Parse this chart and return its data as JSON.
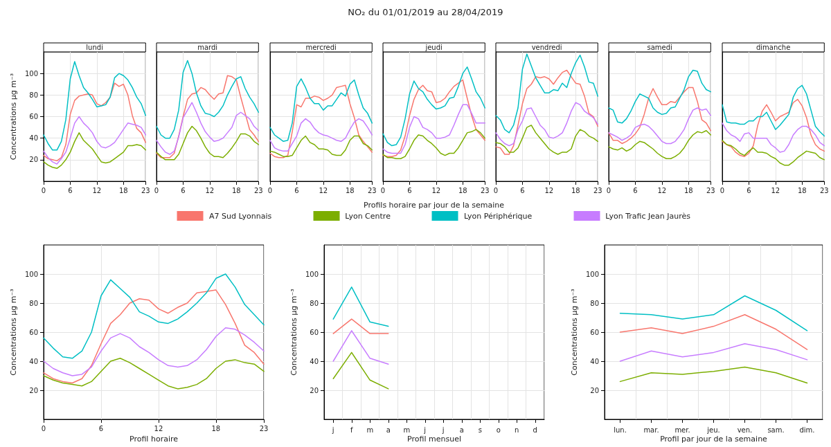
{
  "chart_data": [
    {
      "type": "line",
      "subtitle": "lundi",
      "ylabel": "Concentrations µg m⁻³",
      "x": [
        0,
        1,
        2,
        3,
        4,
        5,
        6,
        7,
        8,
        9,
        10,
        11,
        12,
        13,
        14,
        15,
        16,
        17,
        18,
        19,
        20,
        21,
        22,
        23
      ],
      "xlim": [
        0,
        23
      ],
      "xticks": [
        0,
        6,
        12,
        18,
        23
      ],
      "ylim": [
        0,
        120
      ],
      "yticks": [
        20,
        40,
        60,
        80,
        100
      ],
      "grid": true,
      "series": [
        {
          "color": "#f8766d",
          "values": [
            24,
            21,
            20,
            19,
            22,
            34,
            62,
            75,
            79,
            80,
            81,
            80,
            72,
            70,
            73,
            78,
            91,
            88,
            90,
            80,
            61,
            49,
            45,
            36
          ]
        },
        {
          "color": "#7cae00",
          "values": [
            18,
            15,
            13,
            12,
            15,
            20,
            27,
            37,
            45,
            38,
            34,
            30,
            24,
            18,
            17,
            18,
            21,
            24,
            27,
            33,
            33,
            34,
            33,
            29
          ]
        },
        {
          "color": "#00bfc4",
          "values": [
            43,
            35,
            29,
            29,
            37,
            57,
            95,
            111,
            98,
            87,
            82,
            76,
            69,
            70,
            71,
            78,
            96,
            100,
            98,
            94,
            87,
            78,
            72,
            61
          ]
        },
        {
          "color": "#c77cff",
          "values": [
            28,
            22,
            18,
            16,
            21,
            27,
            40,
            54,
            60,
            54,
            50,
            45,
            37,
            32,
            31,
            33,
            36,
            42,
            48,
            54,
            53,
            52,
            50,
            43
          ]
        }
      ]
    },
    {
      "type": "line",
      "subtitle": "mardi",
      "x": [
        0,
        1,
        2,
        3,
        4,
        5,
        6,
        7,
        8,
        9,
        10,
        11,
        12,
        13,
        14,
        15,
        16,
        17,
        18,
        19,
        20,
        21,
        22,
        23
      ],
      "xlim": [
        0,
        23
      ],
      "xticks": [
        0,
        6,
        12,
        18,
        23
      ],
      "ylim": [
        0,
        120
      ],
      "yticks": [
        20,
        40,
        60,
        80,
        100
      ],
      "grid": true,
      "tick_labels": "x",
      "series": [
        {
          "color": "#f8766d",
          "values": [
            26,
            22,
            22,
            22,
            26,
            42,
            60,
            76,
            81,
            82,
            87,
            85,
            80,
            76,
            81,
            82,
            98,
            97,
            94,
            78,
            63,
            48,
            43,
            37
          ]
        },
        {
          "color": "#7cae00",
          "values": [
            27,
            23,
            20,
            20,
            20,
            25,
            35,
            45,
            51,
            47,
            40,
            32,
            26,
            23,
            23,
            22,
            26,
            31,
            37,
            44,
            44,
            42,
            37,
            34
          ]
        },
        {
          "color": "#00bfc4",
          "values": [
            51,
            43,
            40,
            40,
            48,
            66,
            101,
            112,
            100,
            82,
            70,
            63,
            62,
            60,
            64,
            70,
            80,
            88,
            95,
            97,
            86,
            78,
            72,
            64
          ]
        },
        {
          "color": "#c77cff",
          "values": [
            38,
            32,
            27,
            25,
            28,
            41,
            59,
            66,
            73,
            64,
            54,
            46,
            41,
            37,
            38,
            40,
            45,
            50,
            61,
            64,
            61,
            58,
            51,
            47
          ]
        }
      ]
    },
    {
      "type": "line",
      "subtitle": "mercredi",
      "x": [
        0,
        1,
        2,
        3,
        4,
        5,
        6,
        7,
        8,
        9,
        10,
        11,
        12,
        13,
        14,
        15,
        16,
        17,
        18,
        19,
        20,
        21,
        22,
        23
      ],
      "xlim": [
        0,
        23
      ],
      "xticks": [
        0,
        6,
        12,
        18,
        23
      ],
      "ylim": [
        0,
        120
      ],
      "yticks": [
        20,
        40,
        60,
        80,
        100
      ],
      "grid": true,
      "tick_labels": "x",
      "series": [
        {
          "color": "#f8766d",
          "values": [
            26,
            23,
            22,
            22,
            24,
            46,
            71,
            69,
            77,
            77,
            79,
            78,
            75,
            77,
            80,
            87,
            88,
            89,
            72,
            59,
            43,
            37,
            32,
            27
          ]
        },
        {
          "color": "#7cae00",
          "values": [
            28,
            27,
            25,
            23,
            23,
            24,
            31,
            38,
            42,
            36,
            34,
            30,
            30,
            29,
            25,
            24,
            24,
            29,
            38,
            42,
            42,
            35,
            33,
            29
          ]
        },
        {
          "color": "#00bfc4",
          "values": [
            50,
            43,
            40,
            37,
            38,
            54,
            88,
            95,
            87,
            77,
            72,
            72,
            66,
            70,
            70,
            76,
            82,
            79,
            90,
            94,
            80,
            68,
            63,
            54
          ]
        },
        {
          "color": "#c77cff",
          "values": [
            38,
            31,
            29,
            28,
            28,
            35,
            42,
            54,
            58,
            55,
            49,
            45,
            43,
            42,
            40,
            38,
            37,
            40,
            48,
            55,
            58,
            56,
            50,
            43
          ]
        }
      ]
    },
    {
      "type": "line",
      "title": "NO₂ du 01/01/2019 au 28/04/2019",
      "subtitle": "jeudi",
      "xlabel": "Profils horaire par jour de la semaine",
      "legend": "bottom",
      "x": [
        0,
        1,
        2,
        3,
        4,
        5,
        6,
        7,
        8,
        9,
        10,
        11,
        12,
        13,
        14,
        15,
        16,
        17,
        18,
        19,
        20,
        21,
        22,
        23
      ],
      "xlim": [
        0,
        23
      ],
      "xticks": [
        0,
        6,
        12,
        18,
        23
      ],
      "ylim": [
        0,
        120
      ],
      "yticks": [
        20,
        40,
        60,
        80,
        100
      ],
      "grid": true,
      "tick_labels": "x",
      "series": [
        {
          "name": "A7 Sud Lyonnais",
          "color": "#f8766d",
          "values": [
            24,
            23,
            23,
            24,
            29,
            42,
            61,
            76,
            85,
            89,
            84,
            83,
            73,
            74,
            77,
            83,
            88,
            91,
            94,
            77,
            61,
            48,
            43,
            38
          ]
        },
        {
          "name": "Lyon Centre",
          "color": "#7cae00",
          "values": [
            25,
            22,
            22,
            21,
            21,
            23,
            30,
            38,
            43,
            42,
            38,
            35,
            31,
            26,
            24,
            26,
            26,
            31,
            38,
            45,
            46,
            48,
            45,
            40
          ]
        },
        {
          "name": "Lyon Périphérique",
          "color": "#00bfc4",
          "values": [
            44,
            36,
            33,
            34,
            41,
            58,
            81,
            93,
            86,
            83,
            76,
            71,
            67,
            68,
            70,
            77,
            78,
            88,
            100,
            106,
            95,
            83,
            77,
            68
          ]
        },
        {
          "name": "Lyon Trafic Jean Jaurès",
          "color": "#c77cff",
          "values": [
            30,
            27,
            26,
            26,
            26,
            34,
            50,
            60,
            58,
            50,
            48,
            45,
            40,
            40,
            41,
            43,
            52,
            62,
            71,
            71,
            63,
            54,
            54,
            54
          ]
        }
      ]
    },
    {
      "type": "line",
      "subtitle": "vendredi",
      "x": [
        0,
        1,
        2,
        3,
        4,
        5,
        6,
        7,
        8,
        9,
        10,
        11,
        12,
        13,
        14,
        15,
        16,
        17,
        18,
        19,
        20,
        21,
        22,
        23
      ],
      "xlim": [
        0,
        23
      ],
      "xticks": [
        0,
        6,
        12,
        18,
        23
      ],
      "ylim": [
        0,
        120
      ],
      "yticks": [
        20,
        40,
        60,
        80,
        100
      ],
      "grid": true,
      "tick_labels": "x",
      "series": [
        {
          "color": "#f8766d",
          "values": [
            32,
            31,
            25,
            25,
            33,
            52,
            72,
            86,
            90,
            97,
            96,
            97,
            95,
            90,
            96,
            101,
            103,
            97,
            91,
            90,
            79,
            63,
            60,
            51
          ]
        },
        {
          "color": "#7cae00",
          "values": [
            36,
            35,
            32,
            27,
            27,
            31,
            40,
            50,
            52,
            45,
            40,
            35,
            30,
            27,
            25,
            27,
            27,
            30,
            42,
            48,
            46,
            42,
            40,
            37
          ]
        },
        {
          "color": "#00bfc4",
          "values": [
            61,
            57,
            48,
            45,
            52,
            68,
            104,
            118,
            107,
            96,
            89,
            82,
            82,
            85,
            84,
            91,
            87,
            100,
            110,
            117,
            106,
            92,
            91,
            79
          ]
        },
        {
          "color": "#c77cff",
          "values": [
            45,
            39,
            35,
            33,
            35,
            48,
            56,
            67,
            68,
            60,
            52,
            48,
            41,
            40,
            42,
            45,
            54,
            65,
            73,
            71,
            65,
            62,
            59,
            53
          ]
        }
      ]
    },
    {
      "type": "line",
      "subtitle": "samedi",
      "x": [
        0,
        1,
        2,
        3,
        4,
        5,
        6,
        7,
        8,
        9,
        10,
        11,
        12,
        13,
        14,
        15,
        16,
        17,
        18,
        19,
        20,
        21,
        22,
        23
      ],
      "xlim": [
        0,
        23
      ],
      "xticks": [
        0,
        6,
        12,
        18,
        23
      ],
      "ylim": [
        0,
        120
      ],
      "yticks": [
        20,
        40,
        60,
        80,
        100
      ],
      "grid": true,
      "tick_labels": "x",
      "series": [
        {
          "color": "#f8766d",
          "values": [
            45,
            38,
            38,
            35,
            37,
            40,
            44,
            50,
            62,
            77,
            86,
            78,
            71,
            71,
            74,
            73,
            78,
            83,
            87,
            87,
            74,
            57,
            54,
            47
          ]
        },
        {
          "color": "#7cae00",
          "values": [
            32,
            30,
            29,
            31,
            28,
            30,
            34,
            37,
            36,
            33,
            30,
            26,
            23,
            21,
            21,
            23,
            26,
            31,
            38,
            43,
            46,
            45,
            47,
            43
          ]
        },
        {
          "color": "#00bfc4",
          "values": [
            68,
            66,
            55,
            54,
            58,
            65,
            74,
            81,
            79,
            77,
            68,
            64,
            62,
            63,
            68,
            69,
            77,
            85,
            97,
            103,
            102,
            91,
            85,
            83
          ]
        },
        {
          "color": "#c77cff",
          "values": [
            45,
            43,
            41,
            38,
            40,
            43,
            50,
            52,
            53,
            51,
            47,
            42,
            37,
            35,
            35,
            37,
            42,
            48,
            58,
            66,
            68,
            66,
            67,
            61
          ]
        }
      ]
    },
    {
      "type": "line",
      "subtitle": "dimanche",
      "x": [
        0,
        1,
        2,
        3,
        4,
        5,
        6,
        7,
        8,
        9,
        10,
        11,
        12,
        13,
        14,
        15,
        16,
        17,
        18,
        19,
        20,
        21,
        22,
        23
      ],
      "xlim": [
        0,
        23
      ],
      "xticks": [
        0,
        6,
        12,
        18,
        23
      ],
      "ylim": [
        0,
        120
      ],
      "yticks": [
        20,
        40,
        60,
        80,
        100
      ],
      "grid": true,
      "tick_labels": "x",
      "series": [
        {
          "color": "#f8766d",
          "values": [
            37,
            34,
            32,
            27,
            24,
            23,
            26,
            33,
            52,
            65,
            71,
            64,
            56,
            60,
            62,
            64,
            73,
            76,
            70,
            59,
            43,
            34,
            30,
            28
          ]
        },
        {
          "color": "#7cae00",
          "values": [
            38,
            34,
            33,
            30,
            26,
            24,
            28,
            31,
            27,
            27,
            26,
            23,
            21,
            17,
            15,
            15,
            18,
            22,
            25,
            28,
            27,
            26,
            22,
            20
          ]
        },
        {
          "color": "#00bfc4",
          "values": [
            71,
            55,
            54,
            54,
            53,
            53,
            56,
            56,
            60,
            60,
            64,
            56,
            48,
            52,
            57,
            62,
            78,
            86,
            89,
            81,
            66,
            51,
            46,
            42
          ]
        },
        {
          "color": "#c77cff",
          "values": [
            54,
            47,
            43,
            41,
            37,
            44,
            45,
            40,
            40,
            40,
            40,
            34,
            31,
            27,
            28,
            34,
            43,
            48,
            51,
            51,
            48,
            43,
            36,
            33
          ]
        }
      ]
    },
    {
      "type": "line",
      "xlabel": "Profil horaire",
      "ylabel": "Concentrations µg m⁻³",
      "x": [
        0,
        1,
        2,
        3,
        4,
        5,
        6,
        7,
        8,
        9,
        10,
        11,
        12,
        13,
        14,
        15,
        16,
        17,
        18,
        19,
        20,
        21,
        22,
        23
      ],
      "xlim": [
        0,
        23
      ],
      "xticks": [
        0,
        6,
        12,
        18,
        23
      ],
      "ylim": [
        0,
        120
      ],
      "yticks": [
        20,
        40,
        60,
        80,
        100
      ],
      "grid": true,
      "series": [
        {
          "color": "#f8766d",
          "values": [
            32,
            28,
            26,
            25,
            28,
            37,
            52,
            66,
            72,
            80,
            83,
            82,
            76,
            73,
            77,
            80,
            87,
            88,
            89,
            79,
            66,
            51,
            46,
            38
          ]
        },
        {
          "color": "#7cae00",
          "values": [
            30,
            27,
            25,
            24,
            23,
            26,
            33,
            40,
            42,
            39,
            35,
            31,
            27,
            23,
            21,
            22,
            24,
            28,
            35,
            40,
            41,
            39,
            38,
            33
          ]
        },
        {
          "color": "#00bfc4",
          "values": [
            56,
            49,
            43,
            42,
            47,
            60,
            85,
            96,
            90,
            84,
            74,
            71,
            67,
            66,
            69,
            74,
            80,
            87,
            97,
            100,
            91,
            79,
            72,
            65
          ]
        },
        {
          "color": "#c77cff",
          "values": [
            40,
            35,
            32,
            30,
            31,
            36,
            47,
            56,
            59,
            56,
            50,
            46,
            41,
            37,
            36,
            37,
            41,
            48,
            57,
            63,
            62,
            58,
            53,
            47
          ]
        }
      ]
    },
    {
      "type": "line",
      "xlabel": "Profil mensuel",
      "ylabel": "Concentrations µg m⁻³",
      "categories": [
        "j",
        "f",
        "m",
        "a",
        "m",
        "j",
        "j",
        "a",
        "s",
        "o",
        "n",
        "d"
      ],
      "ylim": [
        0,
        120
      ],
      "yticks": [
        20,
        40,
        60,
        80,
        100
      ],
      "grid": true,
      "series": [
        {
          "color": "#f8766d",
          "values": [
            59,
            69,
            59,
            59,
            null,
            null,
            null,
            null,
            null,
            null,
            null,
            null
          ]
        },
        {
          "color": "#7cae00",
          "values": [
            28,
            46,
            27,
            21,
            null,
            null,
            null,
            null,
            null,
            null,
            null,
            null
          ]
        },
        {
          "color": "#00bfc4",
          "values": [
            69,
            91,
            67,
            64,
            null,
            null,
            null,
            null,
            null,
            null,
            null,
            null
          ]
        },
        {
          "color": "#c77cff",
          "values": [
            40,
            61,
            42,
            38,
            null,
            null,
            null,
            null,
            null,
            null,
            null,
            null
          ]
        }
      ]
    },
    {
      "type": "line",
      "xlabel": "Profil par jour de la semaine",
      "ylabel": "Concentrations µg m⁻³",
      "categories": [
        "lun.",
        "mar.",
        "mer.",
        "jeu.",
        "ven.",
        "sam.",
        "dim."
      ],
      "ylim": [
        0,
        120
      ],
      "yticks": [
        20,
        40,
        60,
        80,
        100
      ],
      "grid": true,
      "series": [
        {
          "color": "#f8766d",
          "values": [
            60,
            63,
            59,
            64,
            72,
            62,
            48
          ]
        },
        {
          "color": "#7cae00",
          "values": [
            26,
            32,
            31,
            33,
            36,
            32,
            25
          ]
        },
        {
          "color": "#00bfc4",
          "values": [
            73,
            72,
            69,
            72,
            85,
            75,
            61
          ]
        },
        {
          "color": "#c77cff",
          "values": [
            40,
            47,
            43,
            46,
            52,
            48,
            41
          ]
        }
      ]
    }
  ]
}
